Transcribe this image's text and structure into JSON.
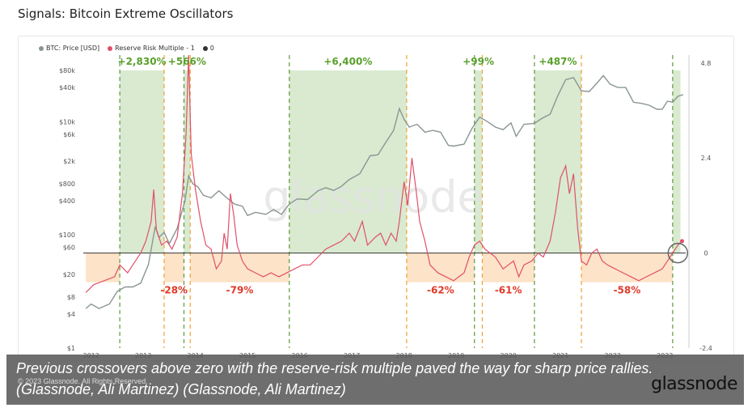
{
  "page": {
    "title": "Signals: Bitcoin Extreme Oscillators"
  },
  "legend": [
    {
      "label": "BTC: Price [USD]",
      "color": "#8a9694"
    },
    {
      "label": "Reserve Risk Multiple - 1",
      "color": "#e0506a"
    },
    {
      "label": "0",
      "color": "#333333"
    }
  ],
  "watermark": "glassnode",
  "caption": "Previous crossovers above zero with the reserve-risk multiple paved the way for sharp price rallies. (Glassnode, Ali Martinez) (Glassnode, Ali Martinez)",
  "copyright": "© 2023 Glassnode. All Rights Reserved.",
  "brand": "glassnode",
  "colors": {
    "price_line": "#8a9694",
    "oscillator_line": "#e0506a",
    "zero_line": "#333333",
    "green_zone": "#d9ead0",
    "orange_zone": "#fde3c7",
    "green_dashed": "#5a9a3a",
    "orange_dashed": "#f0a030",
    "gain_label": "#5aa02c",
    "loss_label": "#e03a2a"
  },
  "chart_data": {
    "type": "line",
    "x_axis": {
      "ticks": [
        "2012",
        "2013",
        "2014",
        "2015",
        "2016",
        "2017",
        "2018",
        "2019",
        "2020",
        "2021",
        "2022",
        "2023"
      ],
      "range": [
        2011.9,
        2023.45
      ]
    },
    "y_left": {
      "scale": "log",
      "ticks": [
        "$1",
        "$4",
        "$8",
        "$20",
        "$60",
        "$100",
        "$400",
        "$800",
        "$2k",
        "$6k",
        "$10k",
        "$40k",
        "$80k"
      ],
      "tick_values": [
        1,
        4,
        8,
        20,
        60,
        100,
        400,
        800,
        2000,
        6000,
        10000,
        40000,
        80000
      ],
      "range": [
        1,
        150000
      ]
    },
    "y_right": {
      "ticks": [
        "-2.4",
        "0",
        "2.4",
        "4.8"
      ],
      "tick_values": [
        -2.4,
        0,
        2.4,
        4.8
      ],
      "range": [
        -2.4,
        5.0
      ]
    },
    "series": [
      {
        "name": "BTC: Price [USD]",
        "axis": "left",
        "points": [
          [
            2011.95,
            5
          ],
          [
            2012.05,
            6
          ],
          [
            2012.2,
            5
          ],
          [
            2012.4,
            6
          ],
          [
            2012.55,
            10
          ],
          [
            2012.7,
            12
          ],
          [
            2012.85,
            12
          ],
          [
            2013.0,
            14
          ],
          [
            2013.15,
            30
          ],
          [
            2013.28,
            140
          ],
          [
            2013.35,
            90
          ],
          [
            2013.45,
            110
          ],
          [
            2013.55,
            70
          ],
          [
            2013.7,
            130
          ],
          [
            2013.85,
            400
          ],
          [
            2013.92,
            1100
          ],
          [
            2014.0,
            800
          ],
          [
            2014.1,
            700
          ],
          [
            2014.2,
            500
          ],
          [
            2014.35,
            450
          ],
          [
            2014.5,
            600
          ],
          [
            2014.65,
            450
          ],
          [
            2014.8,
            350
          ],
          [
            2014.95,
            320
          ],
          [
            2015.05,
            220
          ],
          [
            2015.2,
            250
          ],
          [
            2015.4,
            230
          ],
          [
            2015.55,
            280
          ],
          [
            2015.7,
            230
          ],
          [
            2015.85,
            350
          ],
          [
            2016.0,
            430
          ],
          [
            2016.2,
            420
          ],
          [
            2016.4,
            600
          ],
          [
            2016.55,
            680
          ],
          [
            2016.7,
            610
          ],
          [
            2016.85,
            720
          ],
          [
            2017.0,
            950
          ],
          [
            2017.2,
            1200
          ],
          [
            2017.4,
            2500
          ],
          [
            2017.55,
            2600
          ],
          [
            2017.7,
            4300
          ],
          [
            2017.85,
            7000
          ],
          [
            2017.96,
            17000
          ],
          [
            2018.05,
            11000
          ],
          [
            2018.15,
            8000
          ],
          [
            2018.3,
            9000
          ],
          [
            2018.45,
            6500
          ],
          [
            2018.6,
            7000
          ],
          [
            2018.75,
            6500
          ],
          [
            2018.9,
            3800
          ],
          [
            2019.0,
            3700
          ],
          [
            2019.2,
            4000
          ],
          [
            2019.35,
            7500
          ],
          [
            2019.5,
            12000
          ],
          [
            2019.65,
            10000
          ],
          [
            2019.8,
            8000
          ],
          [
            2019.95,
            7200
          ],
          [
            2020.1,
            9500
          ],
          [
            2020.2,
            5500
          ],
          [
            2020.35,
            9000
          ],
          [
            2020.55,
            9300
          ],
          [
            2020.7,
            11500
          ],
          [
            2020.85,
            13500
          ],
          [
            2021.0,
            29000
          ],
          [
            2021.15,
            55000
          ],
          [
            2021.3,
            60000
          ],
          [
            2021.45,
            35000
          ],
          [
            2021.6,
            34000
          ],
          [
            2021.75,
            48000
          ],
          [
            2021.87,
            65000
          ],
          [
            2022.0,
            46000
          ],
          [
            2022.15,
            40000
          ],
          [
            2022.3,
            40000
          ],
          [
            2022.45,
            22000
          ],
          [
            2022.6,
            21000
          ],
          [
            2022.75,
            19500
          ],
          [
            2022.9,
            16500
          ],
          [
            2023.0,
            16600
          ],
          [
            2023.1,
            23000
          ],
          [
            2023.2,
            22000
          ],
          [
            2023.3,
            28000
          ],
          [
            2023.4,
            30000
          ]
        ]
      },
      {
        "name": "Reserve Risk Multiple - 1",
        "axis": "right",
        "points": [
          [
            2011.95,
            -1.0
          ],
          [
            2012.1,
            -0.8
          ],
          [
            2012.3,
            -0.7
          ],
          [
            2012.5,
            -0.6
          ],
          [
            2012.6,
            -0.3
          ],
          [
            2012.75,
            -0.5
          ],
          [
            2012.9,
            -0.2
          ],
          [
            2013.0,
            0.0
          ],
          [
            2013.1,
            0.3
          ],
          [
            2013.2,
            0.8
          ],
          [
            2013.25,
            1.6
          ],
          [
            2013.3,
            0.6
          ],
          [
            2013.4,
            0.2
          ],
          [
            2013.5,
            0.3
          ],
          [
            2013.6,
            0.1
          ],
          [
            2013.7,
            0.4
          ],
          [
            2013.8,
            1.5
          ],
          [
            2013.87,
            3.0
          ],
          [
            2013.92,
            5.0
          ],
          [
            2013.97,
            2.5
          ],
          [
            2014.05,
            1.6
          ],
          [
            2014.15,
            0.8
          ],
          [
            2014.25,
            0.2
          ],
          [
            2014.35,
            0.1
          ],
          [
            2014.45,
            -0.4
          ],
          [
            2014.55,
            -0.2
          ],
          [
            2014.6,
            0.5
          ],
          [
            2014.66,
            0.1
          ],
          [
            2014.72,
            1.5
          ],
          [
            2014.78,
            1.0
          ],
          [
            2014.85,
            0.2
          ],
          [
            2014.95,
            -0.2
          ],
          [
            2015.05,
            -0.4
          ],
          [
            2015.2,
            -0.5
          ],
          [
            2015.35,
            -0.6
          ],
          [
            2015.5,
            -0.5
          ],
          [
            2015.65,
            -0.6
          ],
          [
            2015.8,
            -0.5
          ],
          [
            2015.95,
            -0.4
          ],
          [
            2016.1,
            -0.3
          ],
          [
            2016.25,
            -0.3
          ],
          [
            2016.4,
            -0.1
          ],
          [
            2016.55,
            0.1
          ],
          [
            2016.7,
            0.2
          ],
          [
            2016.85,
            0.3
          ],
          [
            2017.0,
            0.5
          ],
          [
            2017.1,
            0.3
          ],
          [
            2017.25,
            0.8
          ],
          [
            2017.35,
            0.2
          ],
          [
            2017.5,
            0.4
          ],
          [
            2017.6,
            0.5
          ],
          [
            2017.7,
            0.2
          ],
          [
            2017.8,
            0.5
          ],
          [
            2017.9,
            0.3
          ],
          [
            2017.96,
            0.8
          ],
          [
            2018.05,
            1.8
          ],
          [
            2018.12,
            1.2
          ],
          [
            2018.2,
            2.4
          ],
          [
            2018.28,
            1.6
          ],
          [
            2018.35,
            0.8
          ],
          [
            2018.45,
            0.3
          ],
          [
            2018.55,
            -0.3
          ],
          [
            2018.7,
            -0.5
          ],
          [
            2018.85,
            -0.6
          ],
          [
            2019.0,
            -0.7
          ],
          [
            2019.1,
            -0.6
          ],
          [
            2019.2,
            -0.5
          ],
          [
            2019.3,
            -0.1
          ],
          [
            2019.4,
            0.2
          ],
          [
            2019.5,
            0.3
          ],
          [
            2019.6,
            0.1
          ],
          [
            2019.7,
            0.0
          ],
          [
            2019.8,
            -0.1
          ],
          [
            2019.95,
            -0.4
          ],
          [
            2020.05,
            -0.3
          ],
          [
            2020.15,
            -0.2
          ],
          [
            2020.25,
            -0.6
          ],
          [
            2020.35,
            -0.3
          ],
          [
            2020.5,
            -0.2
          ],
          [
            2020.62,
            0.0
          ],
          [
            2020.72,
            -0.1
          ],
          [
            2020.85,
            0.3
          ],
          [
            2020.95,
            1.0
          ],
          [
            2021.05,
            1.9
          ],
          [
            2021.15,
            2.2
          ],
          [
            2021.22,
            1.5
          ],
          [
            2021.3,
            2.0
          ],
          [
            2021.38,
            0.6
          ],
          [
            2021.45,
            -0.2
          ],
          [
            2021.55,
            -0.3
          ],
          [
            2021.65,
            0.0
          ],
          [
            2021.75,
            0.1
          ],
          [
            2021.85,
            -0.2
          ],
          [
            2021.95,
            -0.3
          ],
          [
            2022.1,
            -0.4
          ],
          [
            2022.25,
            -0.5
          ],
          [
            2022.4,
            -0.6
          ],
          [
            2022.55,
            -0.7
          ],
          [
            2022.7,
            -0.6
          ],
          [
            2022.85,
            -0.5
          ],
          [
            2023.0,
            -0.4
          ],
          [
            2023.1,
            -0.2
          ],
          [
            2023.2,
            0.0
          ],
          [
            2023.3,
            0.2
          ],
          [
            2023.38,
            0.3
          ]
        ]
      }
    ],
    "zones": [
      {
        "kind": "gain",
        "x0": 2012.6,
        "x1": 2013.45,
        "label": "+2,830%"
      },
      {
        "kind": "gain",
        "x0": 2013.83,
        "x1": 2013.95,
        "label": "+566%"
      },
      {
        "kind": "gain",
        "x0": 2015.85,
        "x1": 2018.1,
        "label": "+6,400%"
      },
      {
        "kind": "gain",
        "x0": 2019.4,
        "x1": 2019.55,
        "label": "+99%"
      },
      {
        "kind": "gain",
        "x0": 2020.55,
        "x1": 2021.45,
        "label": "+487%"
      },
      {
        "kind": "gain",
        "x0": 2023.2,
        "x1": 2023.35,
        "label": ""
      },
      {
        "kind": "loss",
        "x0": 2011.95,
        "x1": 2012.6,
        "label": ""
      },
      {
        "kind": "loss",
        "x0": 2013.45,
        "x1": 2013.83,
        "label": "-28%"
      },
      {
        "kind": "loss",
        "x0": 2013.95,
        "x1": 2015.85,
        "label": "-79%"
      },
      {
        "kind": "loss",
        "x0": 2018.1,
        "x1": 2019.4,
        "label": "-62%"
      },
      {
        "kind": "loss",
        "x0": 2019.55,
        "x1": 2020.55,
        "label": "-61%"
      },
      {
        "kind": "loss",
        "x0": 2021.45,
        "x1": 2023.2,
        "label": "-58%"
      }
    ],
    "green_dashed_x": [
      2012.6,
      2013.83,
      2015.85,
      2019.4,
      2020.55,
      2023.2
    ],
    "orange_dashed_x": [
      2013.45,
      2013.95,
      2018.1,
      2019.55,
      2021.45
    ],
    "legend_placement": "top-left",
    "grid": false
  }
}
